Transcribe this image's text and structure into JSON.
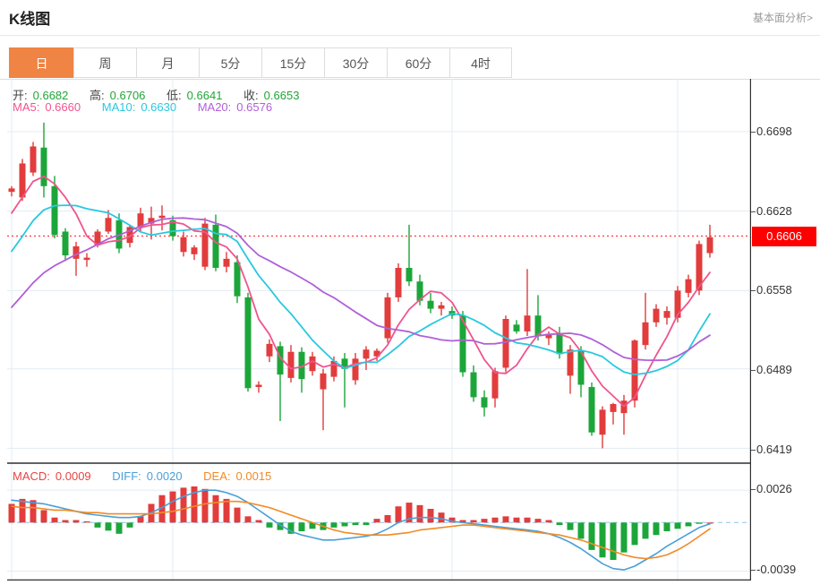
{
  "header": {
    "title": "K线图",
    "link": "基本面分析>"
  },
  "tabs": {
    "items": [
      {
        "label": "日",
        "active": true
      },
      {
        "label": "周",
        "active": false
      },
      {
        "label": "月",
        "active": false
      },
      {
        "label": "5分",
        "active": false
      },
      {
        "label": "15分",
        "active": false
      },
      {
        "label": "30分",
        "active": false
      },
      {
        "label": "60分",
        "active": false
      },
      {
        "label": "4时",
        "active": false
      }
    ]
  },
  "legend": {
    "ohlc": [
      {
        "label": "开:",
        "value": "0.6682"
      },
      {
        "label": "高:",
        "value": "0.6706"
      },
      {
        "label": "低:",
        "value": "0.6641"
      },
      {
        "label": "收:",
        "value": "0.6653"
      }
    ],
    "ma": [
      {
        "label": "MA5:",
        "value": "0.6660"
      },
      {
        "label": "MA10:",
        "value": "0.6630"
      },
      {
        "label": "MA20:",
        "value": "0.6576"
      }
    ],
    "macd": [
      {
        "label": "MACD:",
        "value": "0.0009"
      },
      {
        "label": "DIFF:",
        "value": "0.0020"
      },
      {
        "label": "DEA:",
        "value": "0.0015"
      }
    ]
  },
  "axis": {
    "main_ticks": [
      {
        "label": "0.6698",
        "price": 0.6698
      },
      {
        "label": "0.6628",
        "price": 0.6628
      },
      {
        "label": "0.6558",
        "price": 0.6558
      },
      {
        "label": "0.6489",
        "price": 0.6489
      },
      {
        "label": "0.6419",
        "price": 0.6419
      }
    ],
    "current_price": {
      "label": "0.6606",
      "price": 0.6606
    },
    "macd_ticks": [
      {
        "label": "0.0026",
        "value": 0.0026
      },
      {
        "label": "-0.0039",
        "value": -0.0039
      }
    ]
  },
  "chart_data": {
    "type": "candlestick+macd",
    "title": "K线图 daily candles with MA5/MA10/MA20 and MACD(12,26,9)",
    "price_axis": {
      "top_price": 0.6698,
      "bottom_price": 0.6419,
      "ticks": [
        0.6698,
        0.6628,
        0.6558,
        0.6489,
        0.6419
      ],
      "current": 0.6606
    },
    "macd_axis": {
      "ticks": [
        0.0026,
        -0.0039
      ],
      "zero": 0
    },
    "grid_candle_indices": [
      0,
      15,
      41,
      62
    ],
    "candles_ohlc": [
      [
        0.6645,
        0.665,
        0.6641,
        0.6648
      ],
      [
        0.664,
        0.6674,
        0.6637,
        0.667
      ],
      [
        0.6662,
        0.6689,
        0.6659,
        0.6685
      ],
      [
        0.6684,
        0.6706,
        0.664,
        0.665
      ],
      [
        0.665,
        0.6659,
        0.6604,
        0.6607
      ],
      [
        0.661,
        0.6613,
        0.6584,
        0.6589
      ],
      [
        0.6586,
        0.6601,
        0.6571,
        0.6597
      ],
      [
        0.6585,
        0.6591,
        0.6579,
        0.6587
      ],
      [
        0.6598,
        0.6612,
        0.6596,
        0.661
      ],
      [
        0.661,
        0.6629,
        0.6608,
        0.6622
      ],
      [
        0.662,
        0.6626,
        0.6591,
        0.6595
      ],
      [
        0.66,
        0.6616,
        0.6596,
        0.6614
      ],
      [
        0.6614,
        0.6631,
        0.661,
        0.6626
      ],
      [
        0.6617,
        0.6632,
        0.6603,
        0.6622
      ],
      [
        0.6622,
        0.6633,
        0.6611,
        0.6624
      ],
      [
        0.662,
        0.6624,
        0.6602,
        0.6606
      ],
      [
        0.6592,
        0.661,
        0.6588,
        0.6605
      ],
      [
        0.659,
        0.6598,
        0.6585,
        0.6596
      ],
      [
        0.6579,
        0.6622,
        0.6576,
        0.6617
      ],
      [
        0.6616,
        0.6625,
        0.6575,
        0.6578
      ],
      [
        0.6579,
        0.6592,
        0.6574,
        0.6586
      ],
      [
        0.6583,
        0.6589,
        0.6547,
        0.6553
      ],
      [
        0.6552,
        0.6556,
        0.6469,
        0.6472
      ],
      [
        0.6473,
        0.6478,
        0.6468,
        0.6475
      ],
      [
        0.65,
        0.6515,
        0.6495,
        0.6511
      ],
      [
        0.6509,
        0.6513,
        0.6443,
        0.6484
      ],
      [
        0.6481,
        0.651,
        0.6477,
        0.6504
      ],
      [
        0.6504,
        0.6508,
        0.6468,
        0.648
      ],
      [
        0.6487,
        0.6504,
        0.6483,
        0.65
      ],
      [
        0.6471,
        0.6489,
        0.6435,
        0.6485
      ],
      [
        0.6482,
        0.65,
        0.6478,
        0.6496
      ],
      [
        0.6498,
        0.6503,
        0.6455,
        0.6489
      ],
      [
        0.6479,
        0.6503,
        0.6475,
        0.6498
      ],
      [
        0.6498,
        0.6509,
        0.6488,
        0.6506
      ],
      [
        0.65,
        0.6507,
        0.6496,
        0.6505
      ],
      [
        0.6516,
        0.6556,
        0.6512,
        0.6552
      ],
      [
        0.6552,
        0.6582,
        0.6548,
        0.6578
      ],
      [
        0.6578,
        0.6616,
        0.6562,
        0.6566
      ],
      [
        0.6566,
        0.6572,
        0.6545,
        0.6549
      ],
      [
        0.6549,
        0.6556,
        0.6538,
        0.6542
      ],
      [
        0.6542,
        0.6548,
        0.6536,
        0.6545
      ],
      [
        0.654,
        0.6544,
        0.6533,
        0.6536
      ],
      [
        0.6536,
        0.654,
        0.6482,
        0.6486
      ],
      [
        0.6486,
        0.6492,
        0.646,
        0.6464
      ],
      [
        0.6464,
        0.647,
        0.6447,
        0.6455
      ],
      [
        0.6463,
        0.649,
        0.6455,
        0.6487
      ],
      [
        0.649,
        0.6536,
        0.6486,
        0.6533
      ],
      [
        0.6528,
        0.6532,
        0.652,
        0.6522
      ],
      [
        0.6522,
        0.6577,
        0.6518,
        0.6536
      ],
      [
        0.6536,
        0.6554,
        0.6514,
        0.6518
      ],
      [
        0.6516,
        0.6522,
        0.651,
        0.652
      ],
      [
        0.652,
        0.6526,
        0.6498,
        0.6502
      ],
      [
        0.6483,
        0.651,
        0.6467,
        0.6506
      ],
      [
        0.6505,
        0.6509,
        0.6464,
        0.6475
      ],
      [
        0.6473,
        0.6477,
        0.643,
        0.6433
      ],
      [
        0.6431,
        0.6456,
        0.6419,
        0.6453
      ],
      [
        0.6451,
        0.6459,
        0.644,
        0.6458
      ],
      [
        0.645,
        0.6466,
        0.6431,
        0.6461
      ],
      [
        0.6461,
        0.6515,
        0.6455,
        0.6514
      ],
      [
        0.651,
        0.6556,
        0.6506,
        0.653
      ],
      [
        0.653,
        0.6546,
        0.6526,
        0.6542
      ],
      [
        0.6534,
        0.6544,
        0.6528,
        0.654
      ],
      [
        0.6534,
        0.6562,
        0.653,
        0.6558
      ],
      [
        0.6556,
        0.6572,
        0.6552,
        0.6568
      ],
      [
        0.6558,
        0.6602,
        0.6554,
        0.6599
      ],
      [
        0.6591,
        0.6616,
        0.6587,
        0.6605
      ]
    ],
    "warmup_closes_for_ma": [
      0.645,
      0.6458,
      0.6466,
      0.6474,
      0.6482,
      0.649,
      0.6498,
      0.6506,
      0.6514,
      0.6522,
      0.653,
      0.6538,
      0.6546,
      0.6556,
      0.657,
      0.6585,
      0.66,
      0.6615,
      0.6628,
      0.664
    ],
    "ma_periods": [
      5,
      10,
      20
    ],
    "macd_hist": [
      0.0015,
      0.0019,
      0.0018,
      0.001,
      0.0004,
      0.0002,
      0.0002,
      0.0001,
      -0.0004,
      -0.00065,
      -0.0009,
      -0.0004,
      0.0005,
      0.0015,
      0.0022,
      0.0025,
      0.0028,
      0.0029,
      0.0027,
      0.0022,
      0.0019,
      0.0012,
      0.0005,
      0.0002,
      -0.0004,
      -0.0006,
      -0.0009,
      -0.0007,
      -0.0005,
      -0.0006,
      -0.0004,
      -0.0003,
      -0.0002,
      -0.0002,
      0.0003,
      0.0006,
      0.0013,
      0.0016,
      0.0014,
      0.0011,
      0.0008,
      0.0004,
      0.0002,
      0.0002,
      0.0003,
      0.0004,
      0.0005,
      0.0004,
      0.0004,
      0.0003,
      0.0002,
      -0.0002,
      -0.0006,
      -0.0013,
      -0.0022,
      -0.0028,
      -0.003,
      -0.0024,
      -0.0018,
      -0.0013,
      -0.001,
      -0.0007,
      -0.0005,
      -0.0003,
      -0.0001,
      0.0
    ],
    "diff_line": [
      0.0018,
      0.0017,
      0.0016,
      0.0015,
      0.0013,
      0.0011,
      0.0009,
      0.0007,
      0.0006,
      0.0005,
      0.0004,
      0.0004,
      0.0005,
      0.0008,
      0.0012,
      0.0017,
      0.0021,
      0.0024,
      0.0026,
      0.0026,
      0.0024,
      0.0021,
      0.0016,
      0.001,
      0.0004,
      -0.0002,
      -0.0007,
      -0.001,
      -0.0012,
      -0.0014,
      -0.0014,
      -0.0013,
      -0.0012,
      -0.0011,
      -0.0009,
      -0.0005,
      0.0,
      0.0003,
      0.0004,
      0.0004,
      0.0003,
      0.0001,
      0.0,
      -0.0001,
      -0.0002,
      -0.0003,
      -0.0004,
      -0.0005,
      -0.0006,
      -0.0007,
      -0.0009,
      -0.0012,
      -0.0016,
      -0.0021,
      -0.0027,
      -0.0033,
      -0.0037,
      -0.0038,
      -0.0035,
      -0.003,
      -0.0025,
      -0.0019,
      -0.0014,
      -0.0009,
      -0.0004,
      -0.0001
    ],
    "dea_line": [
      0.0013,
      0.0012,
      0.0012,
      0.0011,
      0.001,
      0.001,
      0.0009,
      0.0008,
      0.0008,
      0.0007,
      0.0007,
      0.0007,
      0.0007,
      0.0007,
      0.0008,
      0.0009,
      0.0011,
      0.0013,
      0.0015,
      0.0016,
      0.0017,
      0.0017,
      0.0016,
      0.0014,
      0.0012,
      0.0009,
      0.0006,
      0.0003,
      0.0,
      -0.0003,
      -0.0006,
      -0.0008,
      -0.0009,
      -0.001,
      -0.001,
      -0.001,
      -0.0009,
      -0.0008,
      -0.0006,
      -0.0005,
      -0.0004,
      -0.0003,
      -0.0002,
      -0.0002,
      -0.0003,
      -0.0004,
      -0.0005,
      -0.0006,
      -0.0007,
      -0.0008,
      -0.0009,
      -0.001,
      -0.0012,
      -0.0014,
      -0.0017,
      -0.002,
      -0.0023,
      -0.0026,
      -0.0028,
      -0.0029,
      -0.0028,
      -0.0026,
      -0.0022,
      -0.0017,
      -0.0011,
      -0.0005
    ],
    "colors": {
      "up": "#e23c3c",
      "down": "#1ca63a",
      "ma5": "#f0548e",
      "ma10": "#29c8e0",
      "ma20": "#b060d8",
      "diff": "#4a9fd8",
      "dea": "#f28a26",
      "grid": "#e3ecf3",
      "zero_dash": "#a9d5ef",
      "current_line": "#fe3b3b",
      "price_label_bg": "#fe0000",
      "tab_active": "#ef8445",
      "value_green": "#21a637"
    }
  }
}
